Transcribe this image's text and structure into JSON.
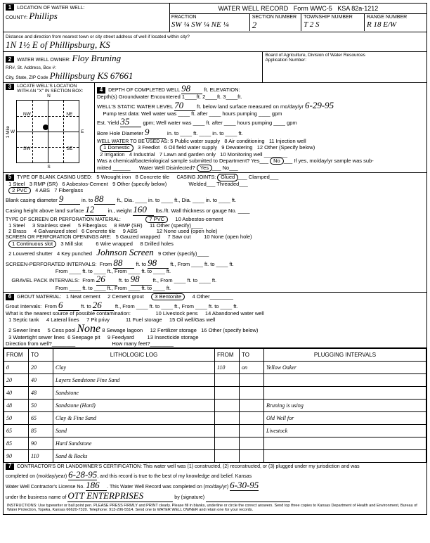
{
  "form": {
    "title": "WATER WELL RECORD",
    "formNo": "Form WWC-5",
    "ksa": "KSA 82a-1212"
  },
  "sec1": {
    "label": "LOCATION OF WATER WELL:",
    "countyLabel": "County:",
    "county": "Phillips",
    "fractionLabel": "Fraction",
    "fraction": "SW ¼ SW ¼ NE ¼",
    "sectionLabel": "Section Number",
    "section": "2",
    "townshipLabel": "Township Number",
    "township": "T 2 S",
    "rangeLabel": "Range Number",
    "range": "R 18 E/W",
    "distLabel": "Distance and direction from nearest town or city street address of well if located within city?",
    "dist": "1N 1½ E of Phillipsburg, KS"
  },
  "sec2": {
    "label": "WATER WELL OWNER:",
    "name": "Floy Bruning",
    "addrLabel": "RR#, St. Address, Box #:",
    "cityLabel": "City, State, ZIP Code",
    "city": "Phillipsburg KS 67661",
    "board": "Board of Agriculture, Division of Water Resources",
    "appLabel": "Application Number:"
  },
  "sec3": {
    "label": "LOCATE WELL'S LOCATION WITH AN \"X\" IN SECTION BOX:",
    "n": "N",
    "s": "S",
    "e": "E",
    "w": "W",
    "nw": "NW",
    "ne": "NE",
    "sw": "SW",
    "se": "SE",
    "mile": "1 Mile"
  },
  "sec4": {
    "label": "DEPTH OF COMPLETED WELL",
    "depth": "98",
    "elevLabel": "ft. ELEVATION:",
    "gwLabel": "Depth(s) Groundwater Encountered",
    "swlLabel": "WELL'S STATIC WATER LEVEL",
    "swl": "70",
    "swlSuffix": "ft. below land surface measured on mo/day/yr",
    "swlDate": "6-29-95",
    "pumpLabel": "Pump test data:",
    "wellWater": "Well water was",
    "ftAfter": "ft. after",
    "hoursPump": "hours pumping",
    "gpm": "gpm",
    "estYieldLabel": "Est. Yield",
    "estYield": "35",
    "boreLabel": "Bore Hole Diameter",
    "bore": "9",
    "useLabel": "WELL WATER TO BE USED AS:",
    "uses": [
      "1 Domestic",
      "2 Irrigation",
      "3 Feedlot",
      "4 Industrial",
      "5 Public water supply",
      "6 Oil field water supply",
      "7 Lawn and garden only",
      "8 Air conditioning",
      "9 Dewatering",
      "10 Monitoring well",
      "11 Injection well",
      "12 Other (Specify below)"
    ],
    "chemLabel": "Was a chemical/bacteriological sample submitted to Department? Yes",
    "no": "No",
    "disinfLabel": "Water Well Disinfected?",
    "yes": "Yes"
  },
  "sec5": {
    "label": "TYPE OF BLANK CASING USED:",
    "opts1": [
      "1 Steel",
      "2 PVC",
      "3 RMP (SR)",
      "4 ABS",
      "5 Wrought iron",
      "6 Asbestos-Cement",
      "7 Fiberglass",
      "8 Concrete tile",
      "9 Other (specify below)"
    ],
    "jointsLabel": "CASING JOINTS:",
    "joints": [
      "Glued",
      "Welded",
      "Threaded",
      "Clamped"
    ],
    "diamLabel": "Blank casing diameter",
    "diam1": "9",
    "to1": "88",
    "heightLabel": "Casing height above land surface",
    "height": "12",
    "weight": "160",
    "screenLabel": "TYPE OF SCREEN OR PERFORATION MATERIAL:",
    "opts2": [
      "1 Steel",
      "2 Brass",
      "3 Stainless steel",
      "4 Galvanized steel",
      "5 Fiberglass",
      "6 Concrete tile",
      "7 PVC",
      "8 RMP (SR)",
      "9 ABS",
      "10 Asbestos-cement",
      "11 Other (specify)",
      "12 None used (open hole)"
    ],
    "openLabel": "SCREEN OR PERFORATION OPENINGS ARE:",
    "opts3": [
      "1 Continuous slot",
      "2 Louvered shutter",
      "3 Mill slot",
      "4 Key punched",
      "5 Gauzed wrapped",
      "6 Wire wrapped",
      "7 Saw cut",
      "8 Drilled holes",
      "9 Other (specify)",
      "10 None (open hole)"
    ],
    "johnson": "Johnson Screen",
    "spiLabel": "SCREEN-PERFORATED INTERVALS:",
    "spiFrom": "88",
    "spiTo": "98",
    "gpiLabel": "GRAVEL PACK INTERVALS:",
    "gpiFrom": "26",
    "gpiTo": "98"
  },
  "sec6": {
    "label": "GROUT MATERIAL:",
    "opts": [
      "1 Neat cement",
      "2 Cement grout",
      "3 Bentonite",
      "4 Other"
    ],
    "intLabel": "Grout Intervals:",
    "from": "6",
    "to": "26",
    "contamLabel": "What is the nearest source of possible contamination:",
    "copts": [
      "1 Septic tank",
      "2 Sewer lines",
      "3 Watertight sewer lines",
      "4 Lateral lines",
      "5 Cess pool",
      "6 Seepage pit",
      "7 Pit privy",
      "8 Sewage lagoon",
      "9 Feedyard",
      "10 Livestock pens",
      "11 Fuel storage",
      "12 Fertilizer storage",
      "13 Insecticide storage",
      "14 Abandoned water well",
      "15 Oil well/Gas well",
      "16 Other (specify below)"
    ],
    "none": "None",
    "dirLabel": "Direction from well?",
    "feetLabel": "How many feet?"
  },
  "log": {
    "headers": [
      "FROM",
      "TO",
      "LITHOLOGIC LOG",
      "FROM",
      "TO",
      "PLUGGING INTERVALS"
    ],
    "rows": [
      {
        "f": "0",
        "t": "20",
        "d": "Clay",
        "pf": "110",
        "pt": "on",
        "p": "Yellow Oaker"
      },
      {
        "f": "20",
        "t": "40",
        "d": "Layers Sandstone Fine Sand",
        "pf": "",
        "pt": "",
        "p": ""
      },
      {
        "f": "40",
        "t": "48",
        "d": "Sandstone",
        "pf": "",
        "pt": "",
        "p": ""
      },
      {
        "f": "48",
        "t": "50",
        "d": "Sandstone (Hard)",
        "pf": "",
        "pt": "",
        "p": "Bruning is using"
      },
      {
        "f": "50",
        "t": "65",
        "d": "Clay & Fine Sand",
        "pf": "",
        "pt": "",
        "p": "Old Well for"
      },
      {
        "f": "65",
        "t": "85",
        "d": "Sand",
        "pf": "",
        "pt": "",
        "p": "Livestock"
      },
      {
        "f": "85",
        "t": "90",
        "d": "Hard Sandstone",
        "pf": "",
        "pt": "",
        "p": ""
      },
      {
        "f": "90",
        "t": "110",
        "d": "Sand & Rocks",
        "pf": "",
        "pt": "",
        "p": ""
      }
    ]
  },
  "sec7": {
    "label": "CONTRACTOR'S OR LANDOWNER'S CERTIFICATION:",
    "cert": "This water well was (1) constructed, (2) reconstructed, or (3) plugged under my jurisdiction and was",
    "compLabel": "completed on (mo/day/year)",
    "compDate": "6-28-95",
    "cert2": "and this record is true to the best of my knowledge and belief. Kansas",
    "licLabel": "Water Well Contractor's License No.",
    "lic": "186",
    "recLabel": "This Water Well Record was completed on (mo/day/yr)",
    "recDate": "6-30-95",
    "bizLabel": "under the business name of",
    "biz": "OTT ENTERPRISES",
    "sigLabel": "by (signature)",
    "instr": "INSTRUCTIONS: Use typewriter or ball point pen. PLEASE PRESS FIRMLY and PRINT clearly. Please fill in blanks, underline or circle the correct answers. Send top three copies to Kansas Department of Health and Environment, Bureau of Water Protection, Topeka, Kansas 66620-7320. Telephone: 913-296-5514. Send one to WATER WELL OWNER and retain one for your records."
  }
}
